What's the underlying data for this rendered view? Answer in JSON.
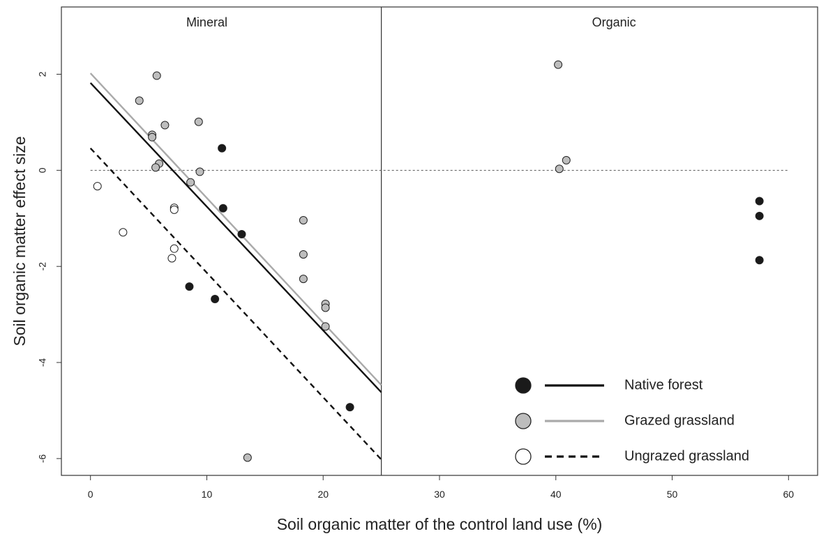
{
  "chart_data": {
    "type": "scatter",
    "title": "",
    "xlabel": "Soil organic matter of the control land use (%)",
    "ylabel": "Soil organic matter effect size",
    "xlim": [
      -2.5,
      62.5
    ],
    "ylim": [
      -6.35,
      3.4
    ],
    "x_ticks": [
      0,
      10,
      20,
      30,
      40,
      50,
      60
    ],
    "y_ticks": [
      2,
      0,
      -2,
      -4,
      -6
    ],
    "panel_divider_x": 25,
    "zero_reference_line": {
      "y": 0,
      "style": "dotted"
    },
    "panels": [
      {
        "label": "Mineral",
        "x_center": 10
      },
      {
        "label": "Organic",
        "x_center": 45
      }
    ],
    "legend_position": "bottom-right",
    "grid": false,
    "series": [
      {
        "name": "Native forest",
        "point_fill": "#1a1a1a",
        "line_color": "#111111",
        "line_style": "solid",
        "points": [
          [
            11.3,
            0.46
          ],
          [
            11.4,
            -0.79
          ],
          [
            13.0,
            -1.33
          ],
          [
            8.5,
            -2.42
          ],
          [
            10.7,
            -2.68
          ],
          [
            22.3,
            -4.93
          ],
          [
            57.5,
            -0.64
          ],
          [
            57.5,
            -0.95
          ],
          [
            57.5,
            -1.87
          ]
        ],
        "fit_line": [
          [
            0,
            1.82
          ],
          [
            25,
            -4.62
          ]
        ]
      },
      {
        "name": "Grazed grassland",
        "point_fill": "#bdbdbd",
        "line_color": "#aaaaaa",
        "line_style": "solid",
        "points": [
          [
            5.7,
            1.97
          ],
          [
            4.2,
            1.45
          ],
          [
            5.3,
            0.74
          ],
          [
            5.3,
            0.69
          ],
          [
            6.4,
            0.94
          ],
          [
            9.3,
            1.01
          ],
          [
            5.9,
            0.14
          ],
          [
            5.6,
            0.06
          ],
          [
            9.4,
            -0.03
          ],
          [
            8.6,
            -0.25
          ],
          [
            18.3,
            -1.04
          ],
          [
            18.3,
            -1.75
          ],
          [
            18.3,
            -2.26
          ],
          [
            20.2,
            -2.78
          ],
          [
            20.2,
            -2.86
          ],
          [
            20.2,
            -3.25
          ],
          [
            13.5,
            -5.98
          ],
          [
            40.2,
            2.2
          ],
          [
            40.9,
            0.21
          ],
          [
            40.3,
            0.03
          ]
        ],
        "fit_line": [
          [
            0,
            2.02
          ],
          [
            25,
            -4.47
          ]
        ]
      },
      {
        "name": "Ungrazed grassland",
        "point_fill": "#ffffff",
        "line_color": "#111111",
        "line_style": "dashed",
        "points": [
          [
            0.6,
            -0.33
          ],
          [
            2.8,
            -1.29
          ],
          [
            7.2,
            -0.78
          ],
          [
            7.2,
            -0.82
          ],
          [
            7.2,
            -1.63
          ],
          [
            7.0,
            -1.83
          ]
        ],
        "fit_line": [
          [
            0,
            0.46
          ],
          [
            25,
            -6.02
          ]
        ]
      }
    ]
  }
}
